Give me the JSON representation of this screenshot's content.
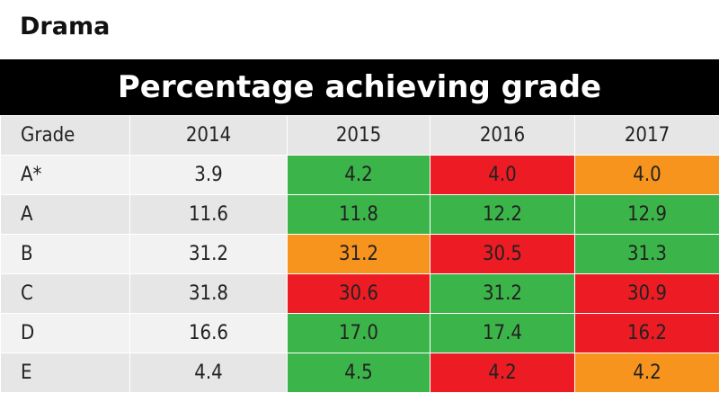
{
  "subject": "Drama",
  "banner": "Percentage achieving grade",
  "colors": {
    "green": "#3bb54a",
    "red": "#ed1c24",
    "orange": "#f7941d",
    "banner_bg": "#000000",
    "header_bg": "#e6e6e6",
    "row_light": "#f2f2f2",
    "row_dark": "#e6e6e6"
  },
  "chart_data": {
    "type": "table",
    "title": "Percentage achieving grade",
    "columns": [
      "Grade",
      "2014",
      "2015",
      "2016",
      "2017"
    ],
    "rows": [
      {
        "grade": "A*",
        "values": [
          "3.9",
          "4.2",
          "4.0",
          "4.0"
        ],
        "status": [
          "base",
          "green",
          "red",
          "orange"
        ]
      },
      {
        "grade": "A",
        "values": [
          "11.6",
          "11.8",
          "12.2",
          "12.9"
        ],
        "status": [
          "base",
          "green",
          "green",
          "green"
        ]
      },
      {
        "grade": "B",
        "values": [
          "31.2",
          "31.2",
          "30.5",
          "31.3"
        ],
        "status": [
          "base",
          "orange",
          "red",
          "green"
        ]
      },
      {
        "grade": "C",
        "values": [
          "31.8",
          "30.6",
          "31.2",
          "30.9"
        ],
        "status": [
          "base",
          "red",
          "green",
          "red"
        ]
      },
      {
        "grade": "D",
        "values": [
          "16.6",
          "17.0",
          "17.4",
          "16.2"
        ],
        "status": [
          "base",
          "green",
          "green",
          "red"
        ]
      },
      {
        "grade": "E",
        "values": [
          "4.4",
          "4.5",
          "4.2",
          "4.2"
        ],
        "status": [
          "base",
          "green",
          "red",
          "orange"
        ]
      }
    ]
  }
}
